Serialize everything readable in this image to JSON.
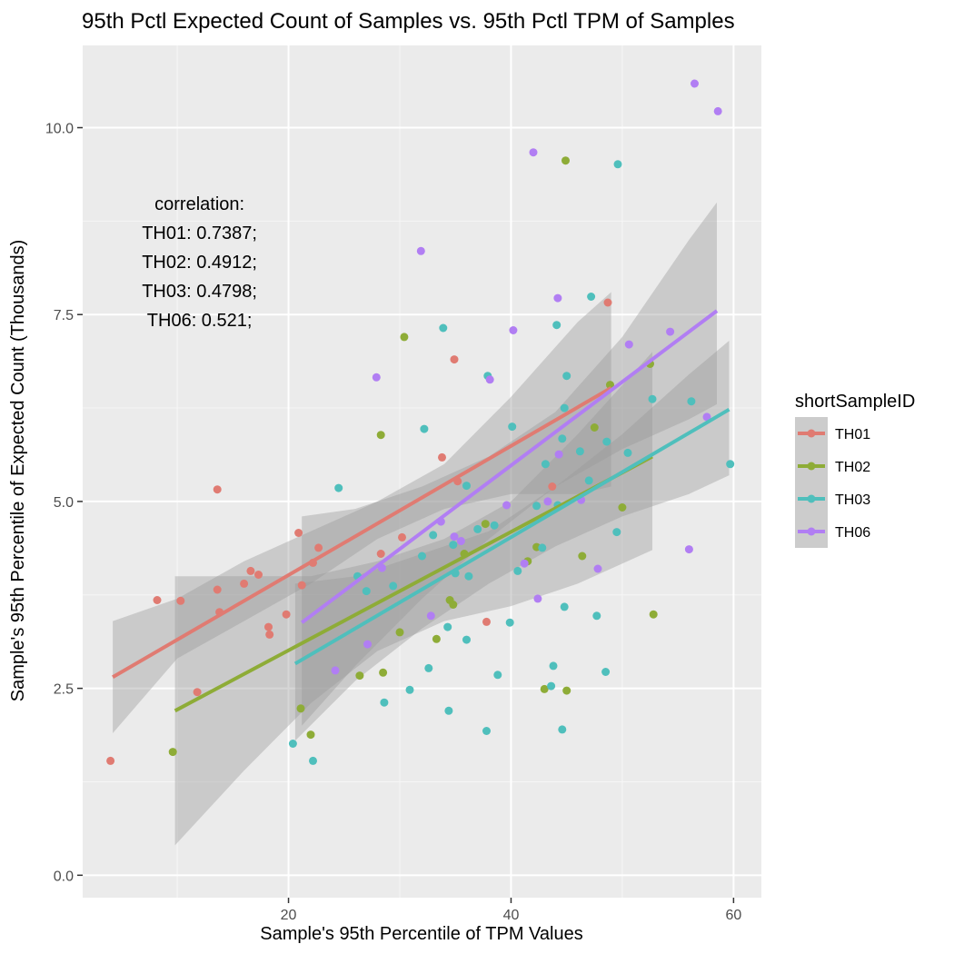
{
  "chart_data": {
    "type": "scatter",
    "title": "95th Pctl Expected Count of Samples vs. 95th Pctl TPM of Samples",
    "xlabel": "Sample's 95th Percentile of TPM Values",
    "ylabel": "Sample's 95th Percentile of Expected Count (Thousands)",
    "xlim": [
      1.5,
      62.5
    ],
    "ylim": [
      -0.3,
      11.1
    ],
    "x_ticks": [
      20,
      40,
      60
    ],
    "y_ticks": [
      0.0,
      2.5,
      5.0,
      7.5,
      10.0
    ],
    "x_tick_labels": [
      "20",
      "40",
      "60"
    ],
    "y_tick_labels": [
      "0.0",
      "2.5",
      "5.0",
      "7.5",
      "10.0"
    ],
    "grid": true,
    "legend": {
      "title": "shortSampleID",
      "position": "right",
      "entries": [
        "TH01",
        "TH02",
        "TH03",
        "TH06"
      ]
    },
    "annotation": {
      "lines": [
        "correlation:",
        "TH01: 0.7387;",
        "TH02: 0.4912;",
        "TH03: 0.4798;",
        "TH06: 0.521;"
      ],
      "x": 12,
      "y_top": 8.9
    },
    "series": [
      {
        "name": "TH01",
        "color": "#e07b72",
        "fit": {
          "x0": 4.2,
          "y0": 2.65,
          "x1": 49.0,
          "y1": 6.52
        },
        "band": {
          "x": [
            4.2,
            10,
            16,
            22,
            28,
            34,
            40,
            46,
            49
          ],
          "lower": [
            1.9,
            2.9,
            3.4,
            3.9,
            4.5,
            4.9,
            5.1,
            5.1,
            5.2
          ],
          "upper": [
            3.4,
            3.7,
            4.2,
            4.6,
            5.0,
            5.5,
            6.4,
            7.4,
            7.8
          ]
        },
        "points": [
          [
            4,
            1.53
          ],
          [
            8.2,
            3.68
          ],
          [
            10.3,
            3.67
          ],
          [
            11.8,
            2.45
          ],
          [
            13.6,
            5.16
          ],
          [
            13.6,
            3.82
          ],
          [
            13.8,
            3.52
          ],
          [
            16,
            3.9
          ],
          [
            16.6,
            4.07
          ],
          [
            17.3,
            4.02
          ],
          [
            18.2,
            3.32
          ],
          [
            18.3,
            3.22
          ],
          [
            19.8,
            3.49
          ],
          [
            20.9,
            4.58
          ],
          [
            21.2,
            3.88
          ],
          [
            22.2,
            4.18
          ],
          [
            22.7,
            4.38
          ],
          [
            28.3,
            4.3
          ],
          [
            33.8,
            5.59
          ],
          [
            34.9,
            6.9
          ],
          [
            37.8,
            3.39
          ],
          [
            43.7,
            5.2
          ],
          [
            48.7,
            7.66
          ],
          [
            30.2,
            4.52
          ],
          [
            35.2,
            5.27
          ]
        ]
      },
      {
        "name": "TH02",
        "color": "#8eac37",
        "fit": {
          "x0": 9.8,
          "y0": 2.2,
          "x1": 52.7,
          "y1": 5.6
        },
        "band": {
          "x": [
            9.8,
            16,
            22,
            28,
            34,
            40,
            46,
            52.7
          ],
          "lower": [
            0.4,
            1.4,
            2.3,
            3.0,
            3.4,
            3.6,
            3.9,
            4.35
          ],
          "upper": [
            4.0,
            4.0,
            4.0,
            4.2,
            4.5,
            5.0,
            5.9,
            7.0
          ]
        },
        "points": [
          [
            9.6,
            1.65
          ],
          [
            21.1,
            2.23
          ],
          [
            22,
            1.88
          ],
          [
            26.4,
            2.67
          ],
          [
            28.3,
            5.89
          ],
          [
            28.5,
            2.71
          ],
          [
            30,
            3.25
          ],
          [
            30.4,
            7.2
          ],
          [
            33.3,
            3.16
          ],
          [
            34.5,
            3.68
          ],
          [
            34.8,
            3.62
          ],
          [
            35.8,
            4.3
          ],
          [
            37.7,
            4.7
          ],
          [
            42.3,
            4.39
          ],
          [
            41.5,
            4.2
          ],
          [
            43,
            2.49
          ],
          [
            45,
            2.47
          ],
          [
            44.9,
            9.56
          ],
          [
            46.4,
            4.27
          ],
          [
            47.5,
            5.99
          ],
          [
            48.9,
            6.56
          ],
          [
            50,
            4.92
          ],
          [
            52.5,
            6.84
          ],
          [
            52.8,
            3.49
          ]
        ]
      },
      {
        "name": "TH03",
        "color": "#4fbfbc",
        "fit": {
          "x0": 20.6,
          "y0": 2.83,
          "x1": 59.6,
          "y1": 6.23
        },
        "band": {
          "x": [
            20.6,
            26,
            32,
            38,
            44,
            50,
            56,
            59.6
          ],
          "lower": [
            1.8,
            2.6,
            3.3,
            3.9,
            4.4,
            4.8,
            5.1,
            5.35
          ],
          "upper": [
            3.9,
            4.0,
            4.3,
            4.6,
            5.2,
            5.9,
            6.7,
            7.15
          ]
        },
        "points": [
          [
            20.4,
            1.76
          ],
          [
            22.2,
            1.53
          ],
          [
            24.5,
            5.18
          ],
          [
            28.6,
            2.31
          ],
          [
            30.9,
            2.48
          ],
          [
            32.2,
            5.97
          ],
          [
            32.6,
            2.77
          ],
          [
            33.9,
            7.32
          ],
          [
            34.3,
            3.32
          ],
          [
            34.4,
            2.2
          ],
          [
            36,
            5.21
          ],
          [
            36,
            3.15
          ],
          [
            37.8,
            1.93
          ],
          [
            37.9,
            6.68
          ],
          [
            38.8,
            2.68
          ],
          [
            39.9,
            3.38
          ],
          [
            40.1,
            6.0
          ],
          [
            42.8,
            4.38
          ],
          [
            43.1,
            5.5
          ],
          [
            43.6,
            2.53
          ],
          [
            43.8,
            2.8
          ],
          [
            44.1,
            7.36
          ],
          [
            44.6,
            5.84
          ],
          [
            44.8,
            6.25
          ],
          [
            44.8,
            3.59
          ],
          [
            44.6,
            1.95
          ],
          [
            45,
            6.68
          ],
          [
            47.2,
            7.74
          ],
          [
            47.7,
            3.47
          ],
          [
            48.5,
            2.72
          ],
          [
            48.6,
            5.8
          ],
          [
            49.5,
            4.59
          ],
          [
            49.6,
            9.51
          ],
          [
            50.5,
            5.65
          ],
          [
            52.7,
            6.37
          ],
          [
            56.2,
            6.34
          ],
          [
            59.7,
            5.5
          ],
          [
            42.3,
            4.94
          ],
          [
            46.2,
            5.67
          ],
          [
            47,
            5.28
          ],
          [
            33,
            4.55
          ],
          [
            36.2,
            4.0
          ],
          [
            38.5,
            4.68
          ],
          [
            27,
            3.8
          ],
          [
            26.2,
            4.0
          ],
          [
            29.4,
            3.87
          ],
          [
            32,
            4.27
          ],
          [
            35,
            4.04
          ],
          [
            37,
            4.63
          ],
          [
            34.8,
            4.42
          ],
          [
            40.6,
            4.07
          ],
          [
            44.2,
            4.95
          ]
        ]
      },
      {
        "name": "TH06",
        "color": "#b17ef3",
        "fit": {
          "x0": 21.2,
          "y0": 3.38,
          "x1": 58.5,
          "y1": 7.55
        },
        "band": {
          "x": [
            21.2,
            26,
            32,
            38,
            44,
            50,
            56,
            58.5
          ],
          "lower": [
            2.0,
            2.8,
            3.7,
            4.5,
            5.2,
            5.7,
            6.1,
            6.3
          ],
          "upper": [
            4.8,
            4.9,
            5.2,
            5.6,
            6.2,
            7.2,
            8.5,
            9.0
          ]
        },
        "points": [
          [
            24.2,
            2.74
          ],
          [
            27.1,
            3.09
          ],
          [
            27.9,
            6.66
          ],
          [
            28.4,
            4.11
          ],
          [
            31.9,
            8.35
          ],
          [
            32.8,
            3.47
          ],
          [
            33.7,
            4.73
          ],
          [
            34.9,
            4.53
          ],
          [
            35.5,
            4.47
          ],
          [
            38.1,
            6.63
          ],
          [
            40.2,
            7.29
          ],
          [
            41.2,
            4.17
          ],
          [
            42,
            9.67
          ],
          [
            42.4,
            3.7
          ],
          [
            43.3,
            5.0
          ],
          [
            44.2,
            7.72
          ],
          [
            44.3,
            5.63
          ],
          [
            47.8,
            4.1
          ],
          [
            50.6,
            7.1
          ],
          [
            54.3,
            7.27
          ],
          [
            56,
            4.36
          ],
          [
            56.5,
            10.59
          ],
          [
            57.6,
            6.13
          ],
          [
            58.6,
            10.22
          ],
          [
            39.6,
            4.95
          ],
          [
            46.3,
            5.02
          ]
        ]
      }
    ]
  }
}
